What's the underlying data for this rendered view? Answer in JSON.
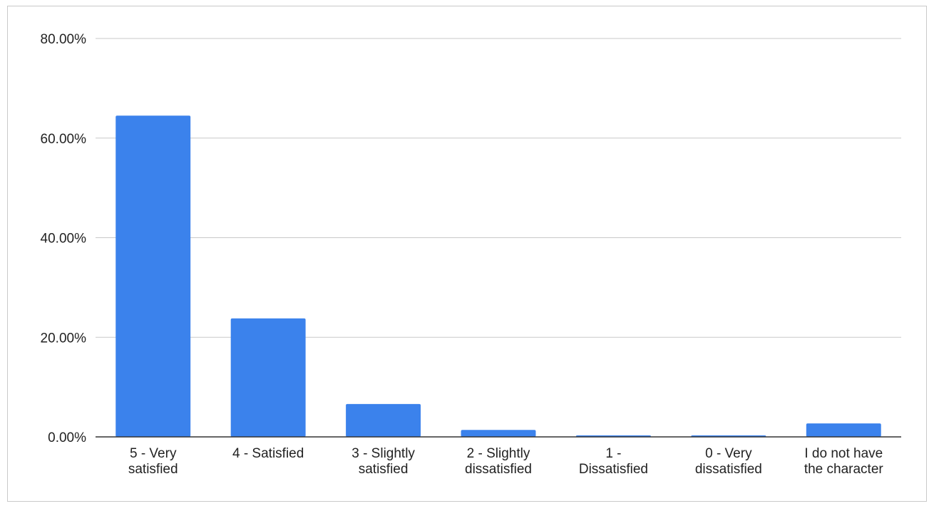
{
  "chart_data": {
    "type": "bar",
    "categories": [
      [
        "5 - Very",
        "satisfied"
      ],
      [
        "4 - Satisfied"
      ],
      [
        "3 - Slightly",
        "satisfied"
      ],
      [
        "2 - Slightly",
        "dissatisfied"
      ],
      [
        "1 -",
        "Dissatisfied"
      ],
      [
        "0 - Very",
        "dissatisfied"
      ],
      [
        "I do not have",
        "the character"
      ]
    ],
    "values": [
      64.5,
      23.8,
      6.6,
      1.4,
      0.3,
      0.3,
      2.7
    ],
    "y_ticks": [
      "0.00%",
      "20.00%",
      "40.00%",
      "60.00%",
      "80.00%"
    ],
    "ylim": [
      0,
      80
    ],
    "grid": true,
    "legend": "none",
    "bar_color": "#3b82ec",
    "grid_color": "#c8c8c8",
    "axis_color": "#333333"
  }
}
